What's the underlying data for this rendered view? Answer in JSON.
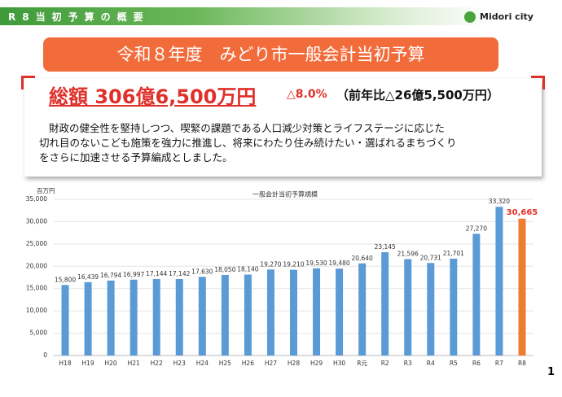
{
  "header": {
    "section": "R8当初予算の概要",
    "logo": "Midori city"
  },
  "title": "令和８年度　みどり市一般会計当初予算",
  "summary": {
    "total": "総額 306億6,500万円",
    "change": "△8.0%",
    "comparison": "（前年比△26億5,500万円）",
    "body": [
      "財政の健全性を堅持しつつ、喫緊の課題である人口減少対策とライフステージに応じた",
      "切れ目のないこども施策を強力に推進し、将来にわたり住み続けたい・選ばれるまちづくり",
      "をさらに加速させる予算編成としました。"
    ]
  },
  "chart_data": {
    "type": "bar",
    "title": "一般会計当初予算規模",
    "unit": "百万円",
    "categories": [
      "H18",
      "H19",
      "H20",
      "H21",
      "H22",
      "H23",
      "H24",
      "H25",
      "H26",
      "H27",
      "H28",
      "H29",
      "H30",
      "R元",
      "R2",
      "R3",
      "R4",
      "R5",
      "R6",
      "R7",
      "R8"
    ],
    "values": [
      15800,
      16439,
      16794,
      16997,
      17144,
      17142,
      17630,
      18050,
      18140,
      19270,
      19210,
      19530,
      19480,
      20640,
      23145,
      21596,
      20731,
      21701,
      27270,
      33320,
      30665
    ],
    "value_labels": [
      "15,800",
      "16,439",
      "16,794",
      "16,997",
      "17,144",
      "17,142",
      "17,630",
      "18,050",
      "18,140",
      "19,270",
      "19,210",
      "19,530",
      "19,480",
      "20,640",
      "23,145",
      "21,596",
      "20,731",
      "21,701",
      "27,270",
      "33,320",
      "30,665"
    ],
    "colors": [
      "#5b9bd5",
      "#5b9bd5",
      "#5b9bd5",
      "#5b9bd5",
      "#5b9bd5",
      "#5b9bd5",
      "#5b9bd5",
      "#5b9bd5",
      "#5b9bd5",
      "#5b9bd5",
      "#5b9bd5",
      "#5b9bd5",
      "#5b9bd5",
      "#5b9bd5",
      "#5b9bd5",
      "#5b9bd5",
      "#5b9bd5",
      "#5b9bd5",
      "#5b9bd5",
      "#5b9bd5",
      "#ed7d31"
    ],
    "ylim": [
      0,
      35000
    ],
    "yticks": [
      0,
      {
        "value": 5000,
        "label": "5,000"
      },
      {
        "value": 10000,
        "label": "10,000"
      },
      {
        "value": 15000,
        "label": "15,000"
      },
      {
        "value": 20000,
        "label": "20,000"
      },
      {
        "value": 25000,
        "label": "25,000"
      },
      {
        "value": 30000,
        "label": "30,000"
      },
      {
        "value": 35000,
        "label": "35,000"
      }
    ],
    "grid": true
  },
  "page_number": "1"
}
